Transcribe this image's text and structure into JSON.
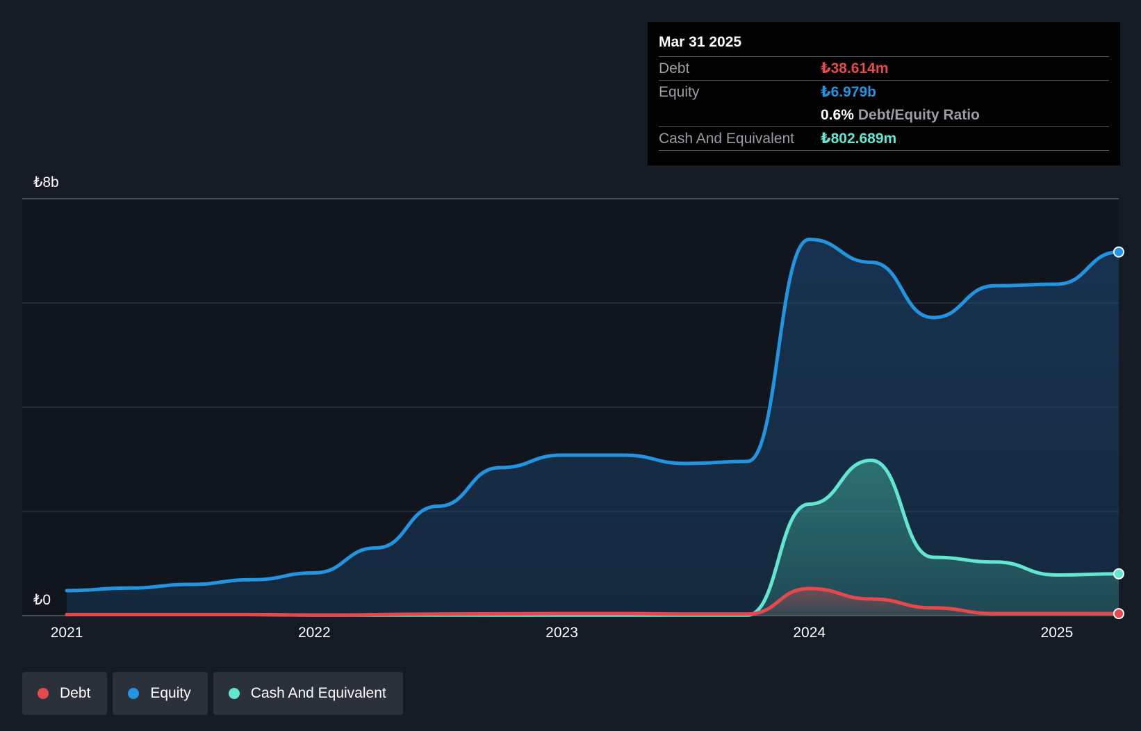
{
  "chart_data": {
    "type": "area",
    "y_axis": {
      "min_label": "₺0",
      "max_label": "₺8b",
      "ylim": [
        0,
        8
      ],
      "unit": "b"
    },
    "x_ticks": [
      "2021",
      "2022",
      "2023",
      "2024",
      "2025"
    ],
    "x_tick_values": [
      2021.0,
      2022.0,
      2023.0,
      2024.0,
      2025.0
    ],
    "xlim": [
      2020.82,
      2025.25
    ],
    "grid": true,
    "series": [
      {
        "name": "Debt",
        "color": "#e5484d",
        "points": [
          [
            2021.0,
            0.02
          ],
          [
            2021.75,
            0.02
          ],
          [
            2022.0,
            0.01
          ],
          [
            2022.5,
            0.03
          ],
          [
            2023.0,
            0.04
          ],
          [
            2023.25,
            0.04
          ],
          [
            2023.5,
            0.03
          ],
          [
            2023.75,
            0.03
          ],
          [
            2024.0,
            0.52
          ],
          [
            2024.25,
            0.32
          ],
          [
            2024.5,
            0.15
          ],
          [
            2024.75,
            0.04
          ],
          [
            2025.0,
            0.04
          ],
          [
            2025.25,
            0.039
          ]
        ]
      },
      {
        "name": "Equity",
        "color": "#2394df",
        "points": [
          [
            2021.0,
            0.48
          ],
          [
            2021.25,
            0.53
          ],
          [
            2021.5,
            0.6
          ],
          [
            2021.75,
            0.69
          ],
          [
            2022.0,
            0.82
          ],
          [
            2022.25,
            1.3
          ],
          [
            2022.5,
            2.1
          ],
          [
            2022.75,
            2.84
          ],
          [
            2023.0,
            3.08
          ],
          [
            2023.25,
            3.08
          ],
          [
            2023.5,
            2.92
          ],
          [
            2023.75,
            2.96
          ],
          [
            2024.0,
            7.22
          ],
          [
            2024.25,
            6.78
          ],
          [
            2024.5,
            5.72
          ],
          [
            2024.75,
            6.33
          ],
          [
            2025.0,
            6.36
          ],
          [
            2025.25,
            6.979
          ]
        ]
      },
      {
        "name": "Cash And Equivalent",
        "color": "#62e6d2",
        "points": [
          [
            2021.0,
            0.02
          ],
          [
            2021.75,
            0.02
          ],
          [
            2022.0,
            0.01
          ],
          [
            2022.5,
            0.01
          ],
          [
            2023.0,
            0.01
          ],
          [
            2023.5,
            0.01
          ],
          [
            2023.75,
            0.01
          ],
          [
            2024.0,
            2.14
          ],
          [
            2024.25,
            2.98
          ],
          [
            2024.5,
            1.12
          ],
          [
            2024.75,
            1.03
          ],
          [
            2025.0,
            0.78
          ],
          [
            2025.25,
            0.8027
          ]
        ]
      }
    ]
  },
  "tooltip": {
    "date": "Mar 31 2025",
    "debt_label": "Debt",
    "debt_value": "₺38.614m",
    "equity_label": "Equity",
    "equity_value": "₺6.979b",
    "ratio_value": "0.6%",
    "ratio_label": "Debt/Equity Ratio",
    "cash_label": "Cash And Equivalent",
    "cash_value": "₺802.689m"
  },
  "legend": [
    {
      "label": "Debt",
      "color": "#e5484d"
    },
    {
      "label": "Equity",
      "color": "#2394df"
    },
    {
      "label": "Cash And Equivalent",
      "color": "#62e6d2"
    }
  ]
}
